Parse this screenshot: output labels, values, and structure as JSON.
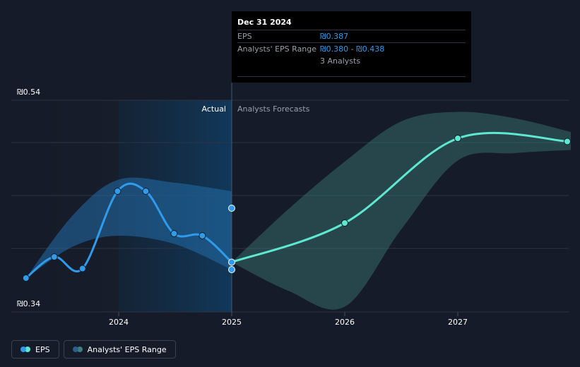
{
  "chart_data": {
    "type": "line",
    "y_axis": {
      "label_top": "₪0.54",
      "label_bottom": "₪0.34",
      "ylim": [
        0.34,
        0.54
      ]
    },
    "x_ticks": [
      "2024",
      "2025",
      "2026",
      "2027"
    ],
    "x_tick_values": [
      2024.0,
      2025.0,
      2026.0,
      2027.0
    ],
    "xlim": [
      2023.05,
      2028.0
    ],
    "region_labels": {
      "actual": "Actual",
      "forecast": "Analysts Forecasts"
    },
    "divider_x": 2025.0,
    "eps_actual": {
      "name": "EPS",
      "color": "#2f9bea",
      "points": [
        {
          "x": 2023.18,
          "y": 0.372
        },
        {
          "x": 2023.43,
          "y": 0.392
        },
        {
          "x": 2023.68,
          "y": 0.381
        },
        {
          "x": 2023.99,
          "y": 0.454
        },
        {
          "x": 2024.24,
          "y": 0.454
        },
        {
          "x": 2024.49,
          "y": 0.414
        },
        {
          "x": 2024.74,
          "y": 0.412
        },
        {
          "x": 2025.0,
          "y": 0.387
        }
      ]
    },
    "eps_forecast": {
      "color": "#5ee8d0",
      "points": [
        {
          "x": 2025.0,
          "y": 0.387
        },
        {
          "x": 2026.0,
          "y": 0.424
        },
        {
          "x": 2027.0,
          "y": 0.504
        },
        {
          "x": 2028.0,
          "y": 0.501
        }
      ]
    },
    "range_past": {
      "upper": [
        [
          2023.18,
          0.372
        ],
        [
          2023.6,
          0.432
        ],
        [
          2024.0,
          0.465
        ],
        [
          2024.5,
          0.462
        ],
        [
          2025.0,
          0.454
        ]
      ],
      "lower": [
        [
          2023.18,
          0.372
        ],
        [
          2023.6,
          0.402
        ],
        [
          2024.0,
          0.412
        ],
        [
          2024.5,
          0.404
        ],
        [
          2025.0,
          0.38
        ]
      ],
      "markers": [
        {
          "x": 2025.0,
          "y": 0.438
        },
        {
          "x": 2025.0,
          "y": 0.38
        }
      ]
    },
    "range_forecast": {
      "upper": [
        [
          2025.0,
          0.387
        ],
        [
          2025.5,
          0.437
        ],
        [
          2026.0,
          0.482
        ],
        [
          2026.5,
          0.52
        ],
        [
          2027.0,
          0.529
        ],
        [
          2027.5,
          0.523
        ],
        [
          2028.0,
          0.51
        ]
      ],
      "lower": [
        [
          2025.0,
          0.387
        ],
        [
          2025.5,
          0.36
        ],
        [
          2026.0,
          0.345
        ],
        [
          2026.5,
          0.418
        ],
        [
          2027.0,
          0.483
        ],
        [
          2027.5,
          0.49
        ],
        [
          2028.0,
          0.493
        ]
      ]
    },
    "grid": true,
    "legend_position": "bottom-left"
  },
  "tooltip": {
    "date": "Dec 31 2024",
    "eps_label": "EPS",
    "eps_value": "₪0.387",
    "range_label": "Analysts' EPS Range",
    "range_low": "₪0.380",
    "range_sep": " - ",
    "range_high": "₪0.438",
    "analysts": "3 Analysts"
  },
  "legend": {
    "items": [
      {
        "label": "EPS",
        "colors": [
          "#5ee8d0",
          "#2f9bea"
        ]
      },
      {
        "label": "Analysts' EPS Range",
        "colors": [
          "#3f7f7f",
          "#2a5f8a"
        ]
      }
    ]
  }
}
